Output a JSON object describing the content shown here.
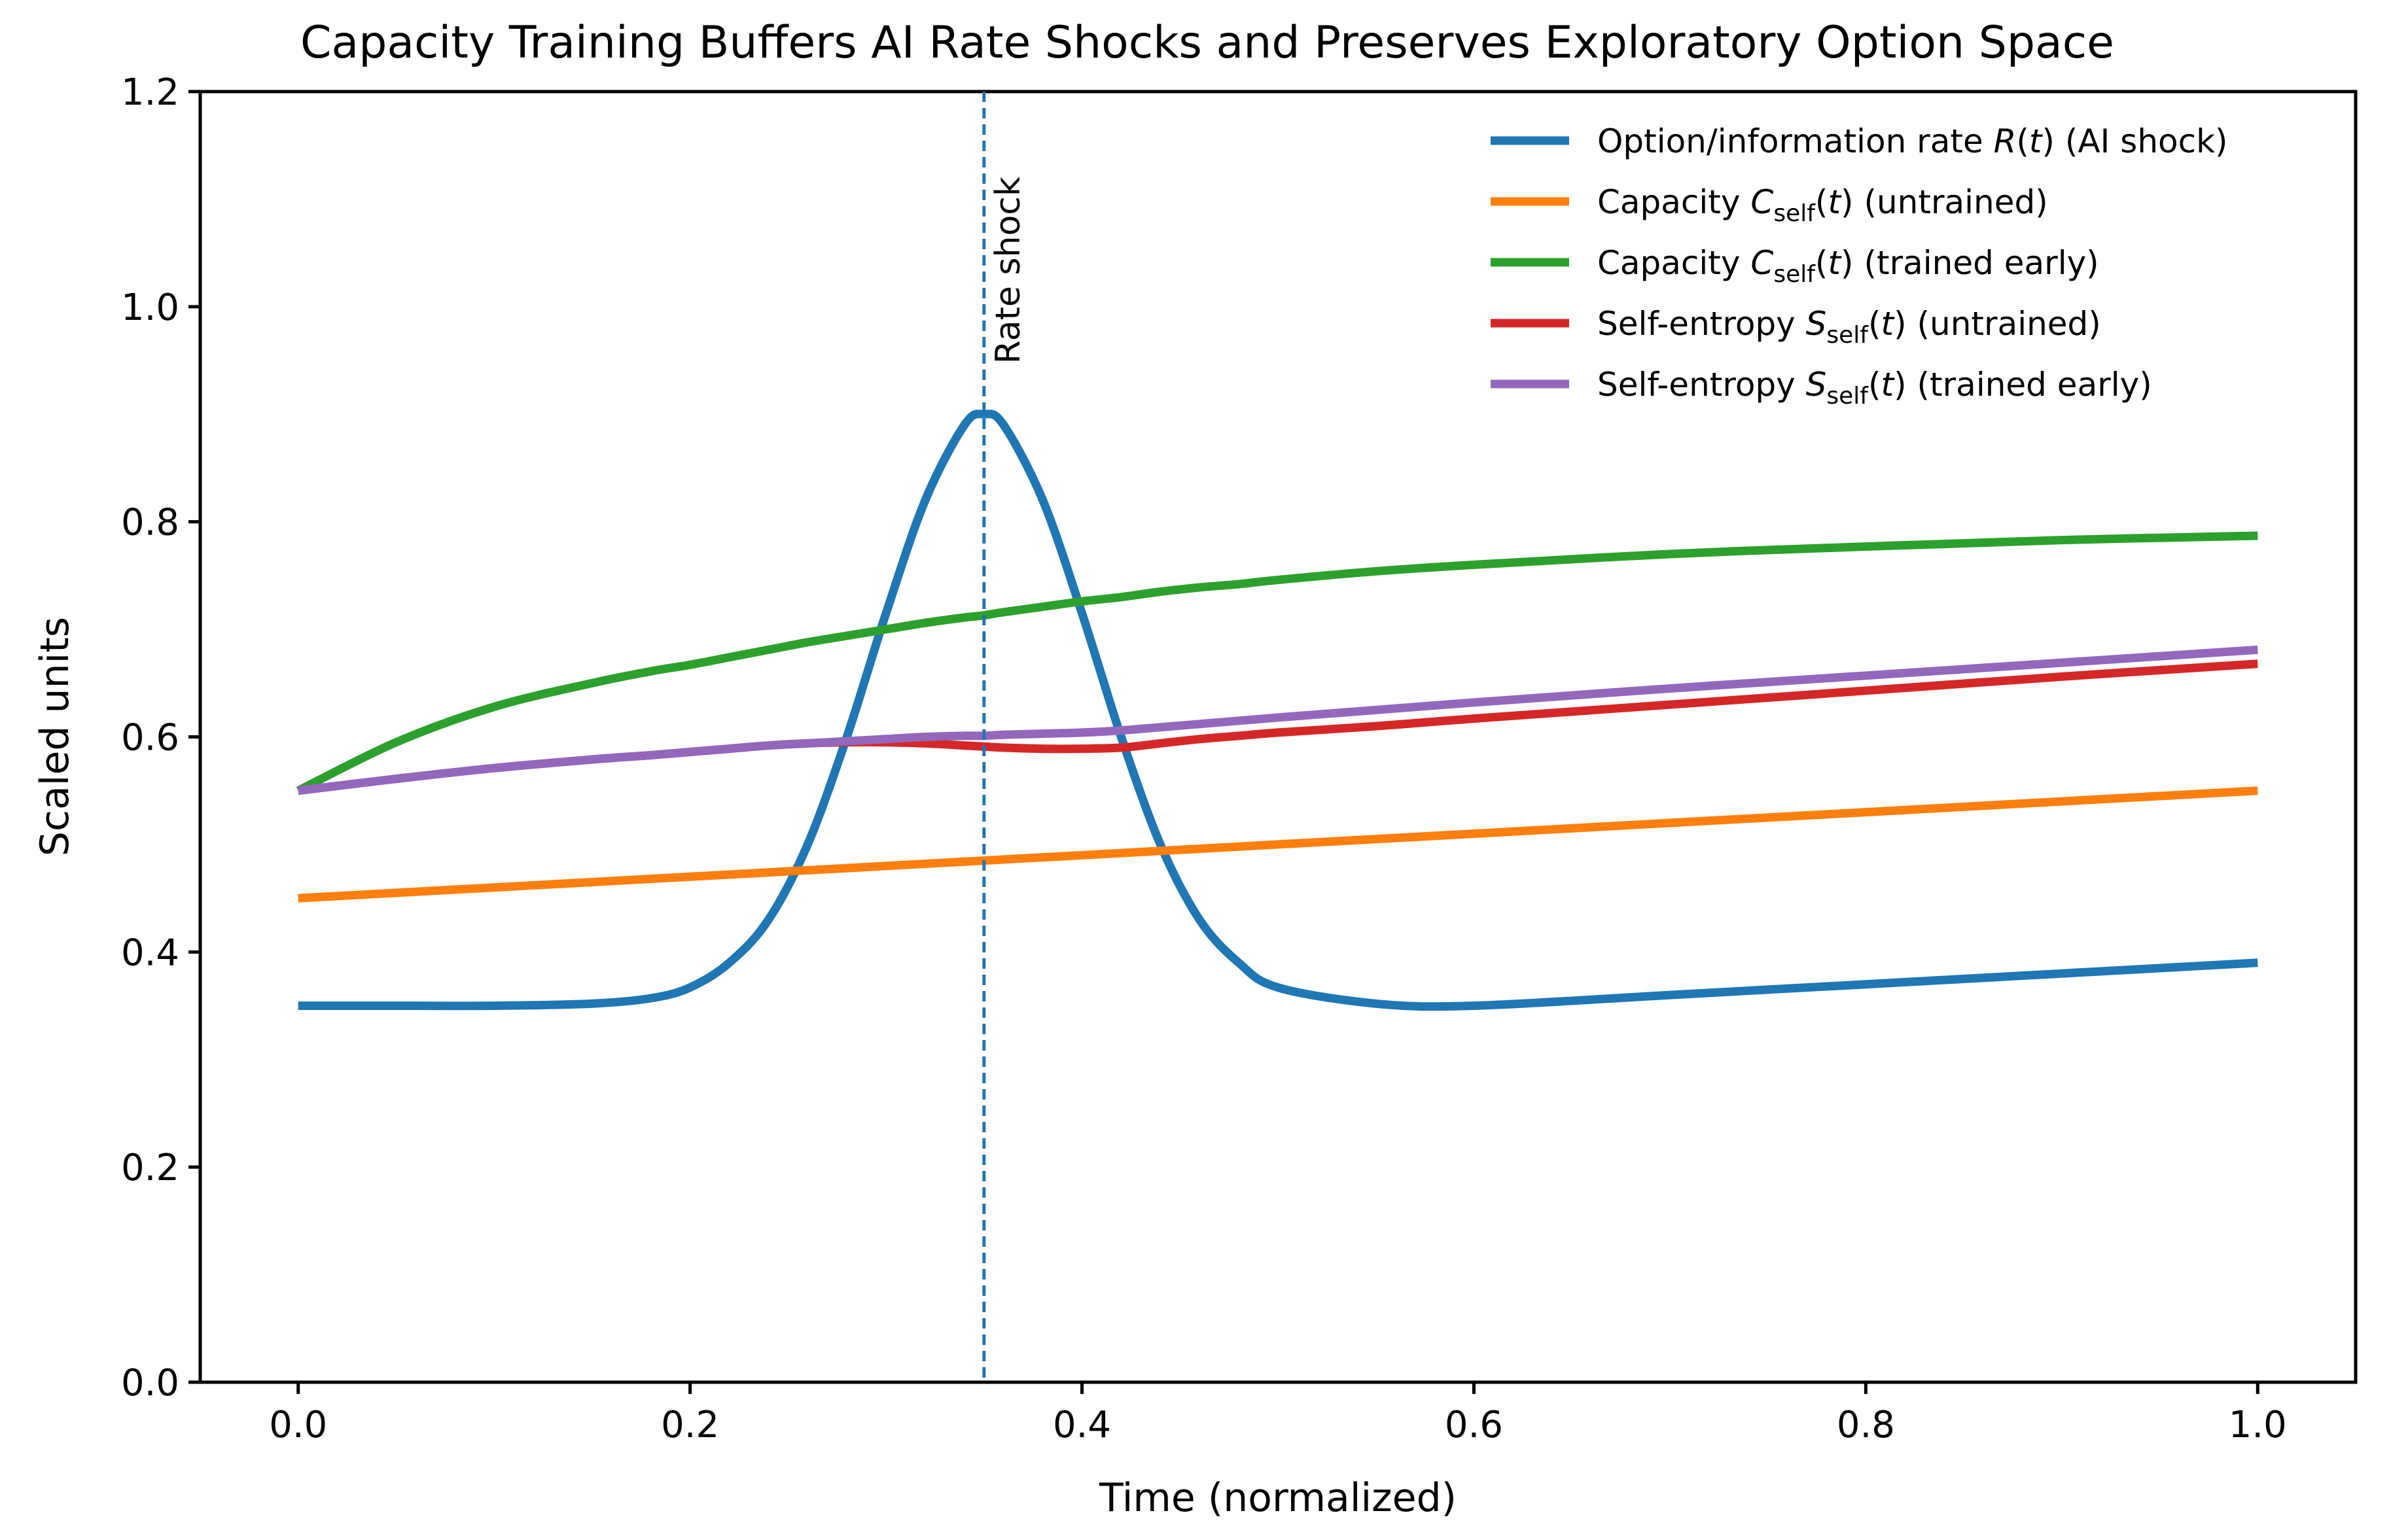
{
  "chart_data": {
    "type": "line",
    "title": "Capacity Training Buffers AI Rate Shocks and Preserves Exploratory Option Space",
    "xlabel": "Time (normalized)",
    "ylabel": "Scaled units",
    "xlim": [
      -0.05,
      1.05
    ],
    "ylim": [
      0.0,
      1.2
    ],
    "xticks": [
      0.0,
      0.2,
      0.4,
      0.6,
      0.8,
      1.0
    ],
    "xtick_labels": [
      "0.0",
      "0.2",
      "0.4",
      "0.6",
      "0.8",
      "1.0"
    ],
    "yticks": [
      0.0,
      0.2,
      0.4,
      0.6,
      0.8,
      1.0,
      1.2
    ],
    "ytick_labels": [
      "0.0",
      "0.2",
      "0.4",
      "0.6",
      "0.8",
      "1.0",
      "1.2"
    ],
    "grid": false,
    "legend_position": "top-right",
    "annotation": {
      "text": "Rate shock",
      "x": 0.35,
      "style": "vertical dashed line",
      "color": "#1f77b4"
    },
    "x": [
      0.0,
      0.05,
      0.1,
      0.15,
      0.18,
      0.2,
      0.22,
      0.24,
      0.26,
      0.28,
      0.3,
      0.32,
      0.34,
      0.35,
      0.36,
      0.38,
      0.4,
      0.42,
      0.44,
      0.46,
      0.48,
      0.5,
      0.55,
      0.6,
      0.7,
      0.8,
      0.9,
      1.0
    ],
    "series": [
      {
        "name": "Option/information rate",
        "legend_math": "R(t)",
        "legend_suffix": " (AI shock)",
        "color": "#1f77b4",
        "values": [
          0.35,
          0.35,
          0.35,
          0.352,
          0.357,
          0.367,
          0.39,
          0.43,
          0.5,
          0.6,
          0.715,
          0.82,
          0.89,
          0.9,
          0.89,
          0.82,
          0.715,
          0.6,
          0.5,
          0.43,
          0.39,
          0.367,
          0.352,
          0.35,
          0.36,
          0.37,
          0.38,
          0.39
        ]
      },
      {
        "name": "Capacity",
        "legend_math": "C",
        "legend_sub": "self",
        "legend_math2": "(t)",
        "legend_suffix": " (untrained)",
        "color": "#ff7f0e",
        "values": [
          0.45,
          0.455,
          0.46,
          0.465,
          0.468,
          0.47,
          0.472,
          0.474,
          0.476,
          0.478,
          0.48,
          0.482,
          0.484,
          0.485,
          0.486,
          0.488,
          0.49,
          0.492,
          0.494,
          0.496,
          0.498,
          0.5,
          0.505,
          0.51,
          0.52,
          0.53,
          0.54,
          0.55
        ]
      },
      {
        "name": "Capacity",
        "legend_math": "C",
        "legend_sub": "self",
        "legend_math2": "(t)",
        "legend_suffix": " (trained early)",
        "color": "#2ca02c",
        "values": [
          0.55,
          0.595,
          0.628,
          0.65,
          0.661,
          0.667,
          0.674,
          0.681,
          0.688,
          0.694,
          0.7,
          0.706,
          0.711,
          0.713,
          0.716,
          0.721,
          0.726,
          0.73,
          0.735,
          0.739,
          0.742,
          0.746,
          0.754,
          0.76,
          0.77,
          0.777,
          0.783,
          0.787
        ]
      },
      {
        "name": "Self-entropy",
        "legend_math": "S",
        "legend_sub": "self",
        "legend_math2": "(t)",
        "legend_suffix": " (untrained)",
        "color": "#d62728",
        "values": [
          0.55,
          0.561,
          0.571,
          0.579,
          0.583,
          0.586,
          0.589,
          0.592,
          0.594,
          0.595,
          0.595,
          0.594,
          0.592,
          0.591,
          0.59,
          0.589,
          0.589,
          0.59,
          0.594,
          0.598,
          0.601,
          0.604,
          0.61,
          0.617,
          0.63,
          0.643,
          0.656,
          0.668
        ]
      },
      {
        "name": "Self-entropy",
        "legend_math": "S",
        "legend_sub": "self",
        "legend_math2": "(t)",
        "legend_suffix": " (trained early)",
        "color": "#9467bd",
        "values": [
          0.55,
          0.561,
          0.571,
          0.579,
          0.583,
          0.586,
          0.589,
          0.592,
          0.594,
          0.596,
          0.598,
          0.6,
          0.601,
          0.601,
          0.602,
          0.603,
          0.604,
          0.606,
          0.609,
          0.612,
          0.615,
          0.618,
          0.625,
          0.632,
          0.645,
          0.657,
          0.669,
          0.681
        ]
      }
    ]
  }
}
